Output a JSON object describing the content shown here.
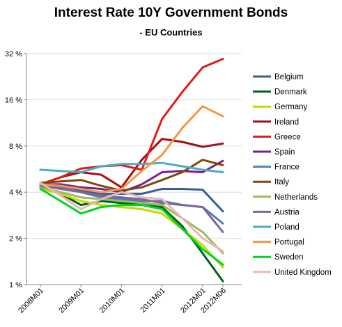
{
  "chart_data": {
    "type": "line",
    "title": "Interest Rate 10Y Government Bonds",
    "subtitle": "-  EU Countries",
    "xlabel": "",
    "ylabel": "",
    "y_scale": "log2",
    "ylim": [
      1,
      32
    ],
    "y_ticks": [
      1,
      2,
      4,
      8,
      16,
      32
    ],
    "y_tick_labels": [
      "1 %",
      "2 %",
      "4 %",
      "8 %",
      "16 %",
      "32 %"
    ],
    "grid": "horizontal",
    "legend_position": "right",
    "x": [
      "2008M01",
      "2008M07",
      "2009M01",
      "2009M07",
      "2010M01",
      "2010M07",
      "2011M01",
      "2011M07",
      "2012M01",
      "2012M06"
    ],
    "x_tick_labels": [
      "2008M01",
      "2009M01",
      "2010M01",
      "2011M01",
      "2012M01",
      "2012M06"
    ],
    "series": [
      {
        "name": "Belgium",
        "color": "#376092",
        "values": [
          4.5,
          4.3,
          4.1,
          3.9,
          3.9,
          3.9,
          4.2,
          4.2,
          4.15,
          3.0
        ]
      },
      {
        "name": "Denmark",
        "color": "#00611c",
        "values": [
          4.4,
          3.9,
          3.3,
          3.5,
          3.4,
          3.3,
          3.2,
          2.4,
          1.6,
          1.05
        ]
      },
      {
        "name": "Germany",
        "color": "#c3d900",
        "values": [
          4.2,
          3.9,
          3.5,
          3.3,
          3.2,
          3.1,
          2.9,
          2.3,
          1.8,
          1.3
        ]
      },
      {
        "name": "Ireland",
        "color": "#a50f15",
        "values": [
          4.5,
          5.0,
          5.4,
          5.2,
          4.3,
          6.5,
          8.9,
          8.5,
          7.9,
          8.3
        ]
      },
      {
        "name": "Greece",
        "color": "#e21a1a",
        "values": [
          4.5,
          5.0,
          5.7,
          5.9,
          6.0,
          5.6,
          12.0,
          18.0,
          26.0,
          29.5
        ]
      },
      {
        "name": "Spain",
        "color": "#7b1f8a",
        "values": [
          4.5,
          4.5,
          4.3,
          4.2,
          4.0,
          4.5,
          5.4,
          5.5,
          5.4,
          6.4
        ]
      },
      {
        "name": "France",
        "color": "#4f81bd",
        "values": [
          4.4,
          4.3,
          4.0,
          3.7,
          3.6,
          3.5,
          3.5,
          3.3,
          3.2,
          2.5
        ]
      },
      {
        "name": "Italy",
        "color": "#7a4a08",
        "values": [
          4.6,
          4.7,
          4.8,
          4.4,
          4.1,
          4.3,
          4.8,
          5.4,
          6.5,
          6.0
        ]
      },
      {
        "name": "Netherlands",
        "color": "#9bbb59",
        "values": [
          4.3,
          4.0,
          3.7,
          3.6,
          3.5,
          3.4,
          3.3,
          2.7,
          2.2,
          1.6
        ]
      },
      {
        "name": "Austria",
        "color": "#8064a2",
        "values": [
          4.4,
          4.2,
          4.0,
          3.8,
          3.7,
          3.6,
          3.4,
          3.3,
          3.2,
          2.2
        ]
      },
      {
        "name": "Poland",
        "color": "#4bacc6",
        "values": [
          5.6,
          5.5,
          5.4,
          5.9,
          6.1,
          6.1,
          6.2,
          5.9,
          5.6,
          5.4
        ]
      },
      {
        "name": "Portugal",
        "color": "#f79646",
        "values": [
          4.5,
          4.4,
          4.2,
          4.0,
          4.2,
          5.5,
          7.0,
          10.5,
          14.5,
          12.5
        ]
      },
      {
        "name": "Sweden",
        "color": "#00d423",
        "values": [
          4.2,
          3.5,
          2.9,
          3.2,
          3.3,
          3.3,
          3.1,
          2.3,
          1.7,
          1.35
        ]
      },
      {
        "name": "United Kingdom",
        "color": "#e6b9b8",
        "values": [
          4.6,
          3.8,
          3.1,
          3.6,
          4.0,
          3.7,
          3.6,
          2.7,
          2.0,
          1.65
        ]
      }
    ]
  }
}
